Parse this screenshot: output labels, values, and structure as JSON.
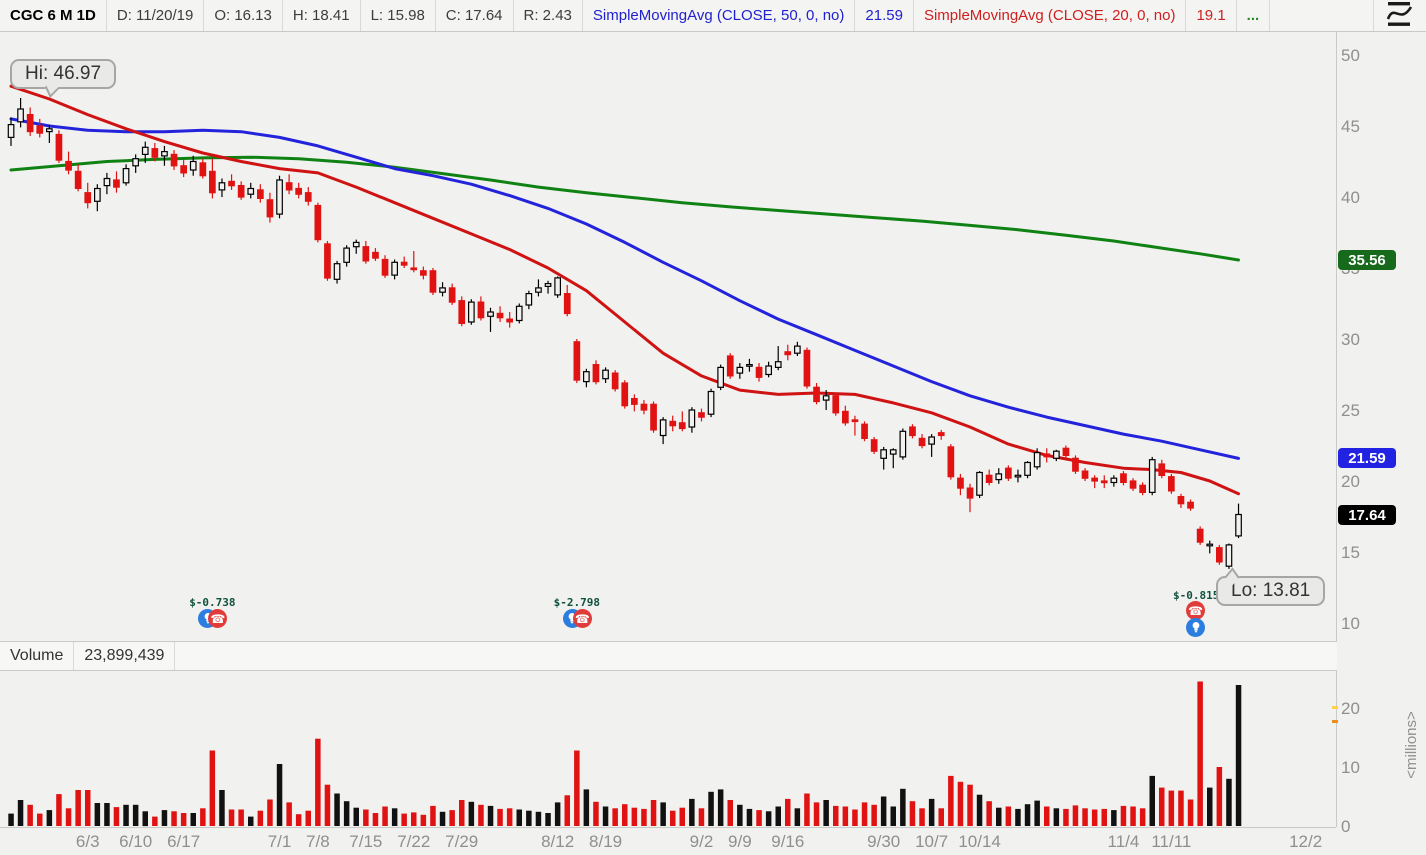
{
  "toolbar": {
    "symbol": "CGC 6 M 1D",
    "date": "D: 11/20/19",
    "open": "O: 16.13",
    "high": "H: 18.41",
    "low": "L: 15.98",
    "close": "C: 17.64",
    "range": "R: 2.43",
    "sma50": {
      "label": "SimpleMovingAvg (CLOSE, 50, 0, no)",
      "value": "21.59"
    },
    "sma20": {
      "label": "SimpleMovingAvg (CLOSE, 20, 0, no)",
      "value": "19.1"
    },
    "more": "..."
  },
  "volume_header": {
    "title": "Volume",
    "value": "23,899,439"
  },
  "annotations": {
    "hi": {
      "label": "Hi: 46.97",
      "index": 1,
      "price": 46.97
    },
    "lo": {
      "label": "Lo: 13.81",
      "index": 127,
      "price": 13.81
    }
  },
  "events": [
    {
      "label": "$-0.738",
      "index": 21,
      "layout": "pair"
    },
    {
      "label": "$-2.798",
      "index": 59,
      "layout": "pair"
    },
    {
      "label": "$-0.815",
      "index": 124,
      "layout": "stacked"
    }
  ],
  "colors": {
    "background": "#f1f1ef",
    "candle_down": "#e01212",
    "candle_up_stroke": "#000000",
    "sma20": "#cf1212",
    "sma50": "#2323dc",
    "sma200": "#0f8213",
    "volume_up": "#111111",
    "volume_down": "#e01212",
    "axis_text": "#8f8f8d",
    "badge_sma200": "#17691c",
    "badge_sma50": "#2222e2",
    "badge_close": "#000000"
  },
  "chart_data": {
    "type": "candlestick+volume",
    "symbol": "CGC",
    "timeframe": "6 months daily",
    "price_ylim": [
      10,
      50
    ],
    "price_ticks": [
      50,
      45,
      40,
      35,
      30,
      25,
      20,
      15,
      10
    ],
    "volume_ticks": [
      20,
      10,
      0
    ],
    "volume_unit": "<millions>",
    "axis_badges": [
      {
        "text": "35.56",
        "price": 35.56,
        "color": "#17691c"
      },
      {
        "text": "21.59",
        "price": 21.59,
        "color": "#2222e2"
      },
      {
        "text": "17.64",
        "price": 17.64,
        "color": "#000000"
      }
    ],
    "x_labels": [
      [
        "6/3",
        8
      ],
      [
        "6/10",
        13
      ],
      [
        "6/17",
        18
      ],
      [
        "7/1",
        28
      ],
      [
        "7/8",
        32
      ],
      [
        "7/15",
        37
      ],
      [
        "7/22",
        42
      ],
      [
        "7/29",
        47
      ],
      [
        "8/12",
        57
      ],
      [
        "8/19",
        62
      ],
      [
        "9/2",
        72
      ],
      [
        "9/9",
        76
      ],
      [
        "9/16",
        81
      ],
      [
        "9/30",
        91
      ],
      [
        "10/7",
        96
      ],
      [
        "10/14",
        101
      ],
      [
        "11/4",
        116
      ],
      [
        "11/11",
        121
      ],
      [
        "12/2",
        135
      ]
    ],
    "candles": [
      [
        "5/21",
        44.2,
        45.6,
        43.6,
        45.1,
        2.1
      ],
      [
        "5/22",
        45.3,
        46.97,
        44.9,
        46.2,
        4.4
      ],
      [
        "5/23",
        45.8,
        46.3,
        44.3,
        44.6,
        3.6
      ],
      [
        "5/24",
        45.0,
        45.5,
        44.2,
        44.5,
        2.1
      ],
      [
        "5/28",
        44.6,
        45.1,
        43.8,
        44.8,
        2.7
      ],
      [
        "5/29",
        44.4,
        44.7,
        42.4,
        42.6,
        5.4
      ],
      [
        "5/30",
        42.5,
        43.2,
        41.6,
        41.9,
        3.0
      ],
      [
        "5/31",
        41.8,
        42.3,
        40.4,
        40.6,
        6.1
      ],
      [
        "6/3",
        40.3,
        41.0,
        39.2,
        39.6,
        6.1
      ],
      [
        "6/4",
        39.7,
        40.9,
        39.0,
        40.6,
        3.9
      ],
      [
        "6/5",
        40.8,
        41.7,
        40.2,
        41.3,
        3.9
      ],
      [
        "6/6",
        41.2,
        41.8,
        40.3,
        40.7,
        3.2
      ],
      [
        "6/7",
        41.0,
        42.3,
        40.8,
        42.0,
        3.6
      ],
      [
        "6/10",
        42.2,
        43.0,
        41.7,
        42.7,
        3.6
      ],
      [
        "6/11",
        43.0,
        43.9,
        42.4,
        43.5,
        2.5
      ],
      [
        "6/12",
        43.4,
        43.8,
        42.5,
        42.8,
        1.6
      ],
      [
        "6/13",
        42.9,
        43.6,
        42.2,
        43.2,
        2.7
      ],
      [
        "6/14",
        43.0,
        43.3,
        41.9,
        42.2,
        2.5
      ],
      [
        "6/17",
        42.2,
        42.6,
        41.4,
        41.7,
        2.2
      ],
      [
        "6/18",
        41.9,
        42.9,
        41.5,
        42.5,
        2.2
      ],
      [
        "6/19",
        42.4,
        42.7,
        41.3,
        41.5,
        3.0
      ],
      [
        "6/20",
        41.8,
        42.7,
        39.9,
        40.3,
        12.8
      ],
      [
        "6/21",
        40.5,
        41.3,
        40.0,
        41.0,
        6.1
      ],
      [
        "6/24",
        41.1,
        41.6,
        40.5,
        40.8,
        2.8
      ],
      [
        "6/25",
        40.8,
        41.1,
        39.8,
        40.0,
        2.8
      ],
      [
        "6/26",
        40.2,
        41.0,
        39.9,
        40.6,
        1.6
      ],
      [
        "6/27",
        40.5,
        40.9,
        39.6,
        39.9,
        2.6
      ],
      [
        "6/28",
        39.8,
        40.3,
        38.2,
        38.6,
        4.5
      ],
      [
        "7/1",
        38.8,
        41.5,
        38.5,
        41.2,
        10.5
      ],
      [
        "7/2",
        41.0,
        41.6,
        40.2,
        40.5,
        4.0
      ],
      [
        "7/3",
        40.6,
        41.0,
        39.9,
        40.2,
        2.0
      ],
      [
        "7/5",
        40.3,
        40.7,
        39.4,
        39.7,
        2.6
      ],
      [
        "7/8",
        39.4,
        39.6,
        36.8,
        37.0,
        14.8
      ],
      [
        "7/9",
        36.7,
        36.9,
        34.1,
        34.3,
        7.0
      ],
      [
        "7/10",
        34.2,
        35.5,
        33.9,
        35.3,
        5.5
      ],
      [
        "7/11",
        35.4,
        36.6,
        35.1,
        36.4,
        4.2
      ],
      [
        "7/12",
        36.5,
        37.0,
        36.0,
        36.8,
        3.1
      ],
      [
        "7/15",
        36.5,
        36.9,
        35.3,
        35.5,
        2.8
      ],
      [
        "7/16",
        36.1,
        36.4,
        35.5,
        35.7,
        2.2
      ],
      [
        "7/17",
        35.6,
        35.9,
        34.3,
        34.5,
        3.3
      ],
      [
        "7/18",
        34.5,
        35.6,
        34.2,
        35.4,
        3.0
      ],
      [
        "7/19",
        35.4,
        35.8,
        35.0,
        35.2,
        2.1
      ],
      [
        "7/22",
        35.0,
        36.2,
        34.7,
        34.9,
        2.3
      ],
      [
        "7/23",
        34.8,
        35.1,
        34.2,
        34.5,
        1.9
      ],
      [
        "7/24",
        34.8,
        35.0,
        33.1,
        33.3,
        3.4
      ],
      [
        "7/25",
        33.3,
        34.0,
        33.0,
        33.6,
        2.4
      ],
      [
        "7/26",
        33.6,
        33.9,
        32.4,
        32.6,
        2.7
      ],
      [
        "7/29",
        32.7,
        33.0,
        30.9,
        31.1,
        4.4
      ],
      [
        "7/30",
        31.2,
        32.8,
        31.0,
        32.6,
        4.1
      ],
      [
        "7/31",
        32.6,
        33.0,
        31.3,
        31.5,
        3.6
      ],
      [
        "8/1",
        31.6,
        32.2,
        30.5,
        31.9,
        3.4
      ],
      [
        "8/2",
        31.8,
        32.3,
        31.2,
        31.5,
        2.9
      ],
      [
        "8/5",
        31.4,
        31.9,
        30.8,
        31.2,
        3.0
      ],
      [
        "8/6",
        31.3,
        32.5,
        31.1,
        32.3,
        2.8
      ],
      [
        "8/7",
        32.4,
        33.4,
        32.1,
        33.2,
        2.6
      ],
      [
        "8/8",
        33.3,
        34.2,
        33.0,
        33.6,
        2.4
      ],
      [
        "8/9",
        33.7,
        34.1,
        33.2,
        33.9,
        2.2
      ],
      [
        "8/12",
        33.1,
        34.4,
        32.9,
        34.3,
        4.0
      ],
      [
        "8/13",
        33.2,
        33.8,
        31.6,
        31.8,
        5.2
      ],
      [
        "8/14",
        29.8,
        30.0,
        26.9,
        27.1,
        12.8
      ],
      [
        "8/15",
        27.0,
        27.9,
        26.6,
        27.7,
        6.2
      ],
      [
        "8/16",
        28.2,
        28.5,
        26.8,
        27.0,
        4.1
      ],
      [
        "8/19",
        27.2,
        28.0,
        26.9,
        27.8,
        3.3
      ],
      [
        "8/20",
        27.6,
        27.8,
        26.3,
        26.5,
        3.0
      ],
      [
        "8/21",
        26.9,
        27.1,
        25.1,
        25.3,
        3.7
      ],
      [
        "8/22",
        25.8,
        26.1,
        24.9,
        25.4,
        3.1
      ],
      [
        "8/23",
        25.4,
        25.7,
        24.7,
        25.0,
        2.9
      ],
      [
        "8/26",
        25.4,
        25.6,
        23.4,
        23.6,
        4.4
      ],
      [
        "8/27",
        23.2,
        24.5,
        22.6,
        24.3,
        4.0
      ],
      [
        "8/28",
        24.2,
        24.6,
        23.5,
        23.9,
        2.6
      ],
      [
        "8/29",
        24.1,
        24.9,
        23.5,
        23.7,
        3.1
      ],
      [
        "8/30",
        23.8,
        25.2,
        23.4,
        25.0,
        4.6
      ],
      [
        "9/3",
        24.8,
        25.1,
        24.2,
        24.5,
        3.0
      ],
      [
        "9/4",
        24.7,
        26.5,
        24.5,
        26.3,
        5.8
      ],
      [
        "9/5",
        26.6,
        28.2,
        26.4,
        28.0,
        6.2
      ],
      [
        "9/6",
        28.8,
        29.0,
        27.2,
        27.4,
        4.4
      ],
      [
        "9/9",
        27.6,
        28.3,
        27.2,
        28.0,
        3.6
      ],
      [
        "9/10",
        28.1,
        28.6,
        27.7,
        28.2,
        2.9
      ],
      [
        "9/11",
        28.0,
        28.3,
        27.0,
        27.3,
        2.7
      ],
      [
        "9/12",
        27.5,
        28.4,
        27.3,
        28.1,
        2.5
      ],
      [
        "9/13",
        28.0,
        29.5,
        27.8,
        28.4,
        3.3
      ],
      [
        "9/16",
        29.1,
        29.6,
        28.5,
        28.9,
        4.6
      ],
      [
        "9/17",
        29.0,
        29.8,
        28.8,
        29.5,
        3.0
      ],
      [
        "9/18",
        29.2,
        29.4,
        26.5,
        26.7,
        5.5
      ],
      [
        "9/19",
        26.6,
        26.9,
        25.4,
        25.6,
        4.0
      ],
      [
        "9/20",
        25.7,
        26.4,
        25.0,
        26.0,
        4.4
      ],
      [
        "9/23",
        26.0,
        26.2,
        24.6,
        24.8,
        3.4
      ],
      [
        "9/24",
        24.9,
        25.3,
        23.9,
        24.1,
        3.3
      ],
      [
        "9/25",
        24.3,
        24.6,
        23.2,
        24.2,
        2.8
      ],
      [
        "9/26",
        24.0,
        24.2,
        22.8,
        23.0,
        4.0
      ],
      [
        "9/27",
        22.9,
        23.1,
        21.9,
        22.1,
        3.6
      ],
      [
        "9/30",
        21.6,
        22.4,
        20.8,
        22.2,
        5.0
      ],
      [
        "10/1",
        21.9,
        22.3,
        20.9,
        22.2,
        3.3
      ],
      [
        "10/2",
        21.7,
        23.7,
        21.5,
        23.5,
        6.3
      ],
      [
        "10/3",
        23.8,
        24.0,
        23.0,
        23.2,
        4.2
      ],
      [
        "10/4",
        23.0,
        23.3,
        22.3,
        22.5,
        3.0
      ],
      [
        "10/7",
        22.6,
        23.3,
        21.7,
        23.1,
        4.6
      ],
      [
        "10/8",
        23.4,
        23.6,
        22.9,
        23.2,
        3.0
      ],
      [
        "10/9",
        22.4,
        22.6,
        20.1,
        20.3,
        8.5
      ],
      [
        "10/10",
        20.2,
        20.5,
        19.0,
        19.5,
        7.5
      ],
      [
        "10/11",
        19.5,
        19.8,
        17.8,
        18.8,
        7.0
      ],
      [
        "10/14",
        19.0,
        20.7,
        18.8,
        20.6,
        5.3
      ],
      [
        "10/15",
        20.4,
        20.8,
        19.7,
        19.9,
        4.2
      ],
      [
        "10/16",
        20.1,
        20.9,
        19.8,
        20.5,
        3.1
      ],
      [
        "10/17",
        20.9,
        21.1,
        20.0,
        20.2,
        3.3
      ],
      [
        "10/18",
        20.3,
        20.8,
        19.9,
        20.4,
        2.9
      ],
      [
        "10/21",
        20.4,
        21.4,
        20.2,
        21.3,
        3.7
      ],
      [
        "10/22",
        21.0,
        22.3,
        20.8,
        22.0,
        4.3
      ],
      [
        "10/23",
        21.9,
        22.3,
        21.3,
        21.7,
        3.3
      ],
      [
        "10/24",
        21.6,
        22.2,
        21.4,
        22.1,
        3.0
      ],
      [
        "10/25",
        22.3,
        22.5,
        21.6,
        21.8,
        2.9
      ],
      [
        "10/28",
        21.6,
        21.8,
        20.5,
        20.7,
        3.5
      ],
      [
        "10/29",
        20.7,
        20.9,
        20.0,
        20.2,
        3.0
      ],
      [
        "10/30",
        20.2,
        20.4,
        19.5,
        20.0,
        2.8
      ],
      [
        "10/31",
        20.0,
        20.4,
        19.5,
        19.9,
        2.9
      ],
      [
        "11/1",
        19.9,
        20.4,
        19.6,
        20.2,
        2.7
      ],
      [
        "11/4",
        20.5,
        20.7,
        19.7,
        19.9,
        3.4
      ],
      [
        "11/5",
        20.0,
        20.2,
        19.3,
        19.5,
        3.3
      ],
      [
        "11/6",
        19.7,
        19.9,
        19.0,
        19.2,
        3.0
      ],
      [
        "11/7",
        19.2,
        21.7,
        19.0,
        21.5,
        8.5
      ],
      [
        "11/8",
        21.2,
        21.5,
        20.2,
        20.4,
        6.5
      ],
      [
        "11/11",
        20.3,
        20.5,
        19.1,
        19.3,
        6.0
      ],
      [
        "11/12",
        18.9,
        19.1,
        18.1,
        18.4,
        6.0
      ],
      [
        "11/13",
        18.5,
        18.7,
        17.9,
        18.1,
        4.5
      ],
      [
        "11/14",
        16.6,
        16.8,
        15.5,
        15.7,
        24.5
      ],
      [
        "11/15",
        15.5,
        15.8,
        14.9,
        15.55,
        6.5
      ],
      [
        "11/18",
        15.3,
        15.5,
        14.1,
        14.3,
        10.0
      ],
      [
        "11/19",
        14.0,
        15.6,
        13.81,
        15.5,
        8.0
      ],
      [
        "11/20",
        16.13,
        18.41,
        15.98,
        17.64,
        23.9
      ]
    ],
    "sma20": [
      [
        0,
        47.8
      ],
      [
        4,
        46.9
      ],
      [
        8,
        45.8
      ],
      [
        12,
        44.8
      ],
      [
        16,
        43.9
      ],
      [
        20,
        43.1
      ],
      [
        24,
        42.5
      ],
      [
        28,
        42.0
      ],
      [
        32,
        41.7
      ],
      [
        36,
        40.7
      ],
      [
        40,
        39.6
      ],
      [
        44,
        38.5
      ],
      [
        48,
        37.4
      ],
      [
        52,
        36.3
      ],
      [
        56,
        35.0
      ],
      [
        60,
        33.4
      ],
      [
        64,
        31.2
      ],
      [
        68,
        29.0
      ],
      [
        72,
        27.4
      ],
      [
        76,
        26.4
      ],
      [
        80,
        26.1
      ],
      [
        84,
        26.2
      ],
      [
        88,
        26.1
      ],
      [
        92,
        25.5
      ],
      [
        96,
        24.8
      ],
      [
        100,
        23.8
      ],
      [
        104,
        22.6
      ],
      [
        108,
        21.8
      ],
      [
        112,
        21.3
      ],
      [
        116,
        20.9
      ],
      [
        119,
        20.8
      ],
      [
        122,
        20.6
      ],
      [
        125,
        20.0
      ],
      [
        128,
        19.1
      ]
    ],
    "sma50": [
      [
        0,
        45.5
      ],
      [
        4,
        45.0
      ],
      [
        8,
        44.7
      ],
      [
        12,
        44.6
      ],
      [
        16,
        44.6
      ],
      [
        20,
        44.7
      ],
      [
        24,
        44.6
      ],
      [
        28,
        44.2
      ],
      [
        32,
        43.6
      ],
      [
        36,
        42.8
      ],
      [
        40,
        42.0
      ],
      [
        44,
        41.5
      ],
      [
        48,
        40.9
      ],
      [
        52,
        40.1
      ],
      [
        56,
        39.2
      ],
      [
        60,
        38.1
      ],
      [
        64,
        36.8
      ],
      [
        68,
        35.4
      ],
      [
        72,
        34.1
      ],
      [
        76,
        32.7
      ],
      [
        80,
        31.4
      ],
      [
        84,
        30.3
      ],
      [
        88,
        29.2
      ],
      [
        92,
        28.1
      ],
      [
        96,
        27.0
      ],
      [
        100,
        26.0
      ],
      [
        104,
        25.2
      ],
      [
        108,
        24.5
      ],
      [
        112,
        23.9
      ],
      [
        116,
        23.3
      ],
      [
        120,
        22.8
      ],
      [
        124,
        22.2
      ],
      [
        128,
        21.59
      ]
    ],
    "sma200": [
      [
        0,
        41.9
      ],
      [
        5,
        42.2
      ],
      [
        10,
        42.5
      ],
      [
        15,
        42.65
      ],
      [
        20,
        42.75
      ],
      [
        25,
        42.8
      ],
      [
        30,
        42.7
      ],
      [
        35,
        42.45
      ],
      [
        40,
        42.1
      ],
      [
        45,
        41.65
      ],
      [
        50,
        41.2
      ],
      [
        55,
        40.7
      ],
      [
        60,
        40.3
      ],
      [
        65,
        39.95
      ],
      [
        70,
        39.6
      ],
      [
        75,
        39.3
      ],
      [
        80,
        39.05
      ],
      [
        85,
        38.8
      ],
      [
        90,
        38.55
      ],
      [
        95,
        38.3
      ],
      [
        100,
        38.0
      ],
      [
        105,
        37.7
      ],
      [
        110,
        37.3
      ],
      [
        115,
        36.9
      ],
      [
        120,
        36.4
      ],
      [
        124,
        36.0
      ],
      [
        128,
        35.56
      ]
    ]
  }
}
